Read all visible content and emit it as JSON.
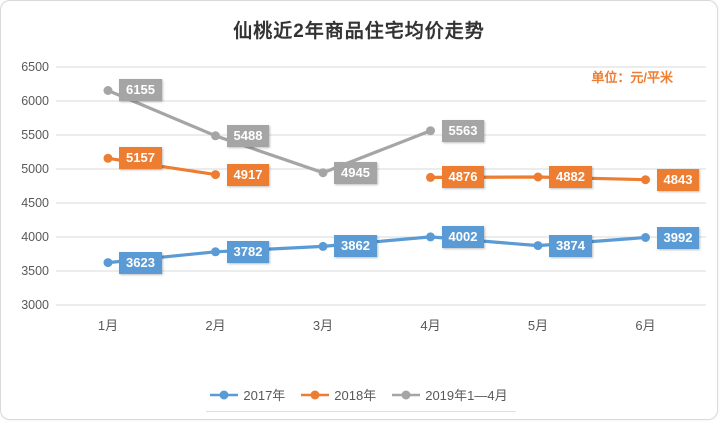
{
  "title": "仙桃近2年商品住宅均价走势",
  "unit_label": "单位：元/平米",
  "colors": {
    "grid": "#D9D9D9",
    "axis_text": "#595959",
    "title_text": "#333333",
    "series_2017": "#5B9BD5",
    "series_2018": "#ED7D31",
    "series_2019": "#A5A5A5"
  },
  "chart_data": {
    "type": "line",
    "title": "仙桃近2年商品住宅均价走势",
    "unit": "单位：元/平米",
    "categories": [
      "1月",
      "2月",
      "3月",
      "4月",
      "5月",
      "6月"
    ],
    "series": [
      {
        "name": "2017年",
        "color": "#5B9BD5",
        "values": [
          3623,
          3782,
          3862,
          4002,
          3874,
          3992
        ]
      },
      {
        "name": "2018年",
        "color": "#ED7D31",
        "values": [
          5157,
          4917,
          null,
          4876,
          4882,
          4843
        ]
      },
      {
        "name": "2019年1—4月",
        "color": "#A5A5A5",
        "values": [
          6155,
          5488,
          4945,
          5563,
          null,
          null
        ]
      }
    ],
    "ylim": [
      3000,
      6500
    ],
    "ytick_step": 500,
    "yticks": [
      6500,
      6000,
      5500,
      5000,
      4500,
      4000,
      3500,
      3000
    ],
    "grid": true,
    "legend_position": "bottom"
  }
}
